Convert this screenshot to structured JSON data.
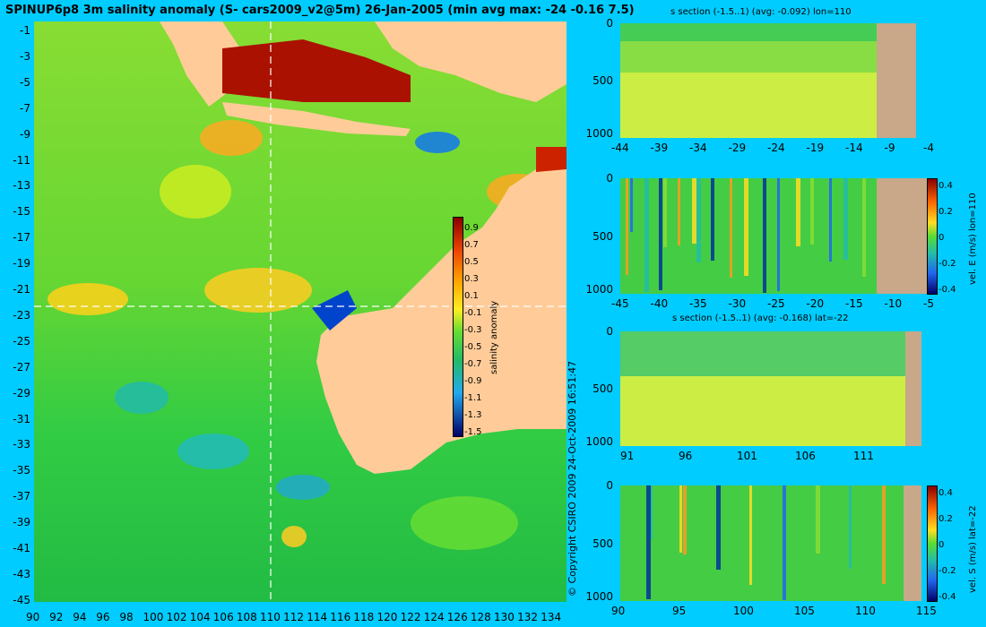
{
  "map": {
    "title": "SPINUP6p8 3m salinity anomaly (S- cars2009_v2@5m) 26-Jan-2005 (min avg max: -24 -0.16 7.5)",
    "x_ticks": [
      "90",
      "92",
      "94",
      "96",
      "98",
      "100",
      "102",
      "104",
      "106",
      "108",
      "110",
      "112",
      "114",
      "116",
      "118",
      "120",
      "122",
      "124",
      "126",
      "128",
      "130",
      "132",
      "134"
    ],
    "y_ticks": [
      "-1",
      "-3",
      "-5",
      "-7",
      "-9",
      "-11",
      "-13",
      "-15",
      "-17",
      "-19",
      "-21",
      "-23",
      "-25",
      "-27",
      "-29",
      "-31",
      "-33",
      "-35",
      "-37",
      "-39",
      "-41",
      "-43",
      "-45"
    ],
    "colorbar": {
      "label": "salinity anomaly",
      "ticks": [
        "0.9",
        "0.7",
        "0.5",
        "0.3",
        "0.1",
        "-0.1",
        "-0.3",
        "-0.5",
        "-0.7",
        "-0.9",
        "-1.1",
        "-1.3",
        "-1.5"
      ]
    },
    "copyright": "© Copyright CSIRO 2009   24-Oct-2009 16:51:47",
    "section_lon": "110",
    "section_lat": "-22"
  },
  "panels": {
    "p1": {
      "title": "s section (-1.5..1) (avg: -0.092) lon=110",
      "y_ticks": [
        "0",
        "500",
        "1000"
      ],
      "x_ticks": [
        "-44",
        "-39",
        "-34",
        "-29",
        "-24",
        "-19",
        "-14",
        "-9",
        "-4"
      ]
    },
    "p2": {
      "y_ticks": [
        "0",
        "500",
        "1000"
      ],
      "x_ticks": [
        "-45",
        "-40",
        "-35",
        "-30",
        "-25",
        "-20",
        "-15",
        "-10",
        "-5"
      ],
      "colorbar_ticks": [
        "0.4",
        "0.2",
        "0",
        "-0.2",
        "-0.4"
      ],
      "colorbar_label": "vel. E (m/s) lon=110"
    },
    "p3": {
      "title": "s section (-1.5..1) (avg: -0.168) lat=-22",
      "y_ticks": [
        "0",
        "500",
        "1000"
      ],
      "x_ticks": [
        "91",
        "96",
        "101",
        "106",
        "111"
      ]
    },
    "p4": {
      "y_ticks": [
        "0",
        "500",
        "1000"
      ],
      "x_ticks": [
        "90",
        "95",
        "100",
        "105",
        "110",
        "115"
      ],
      "colorbar_ticks": [
        "0.4",
        "0.2",
        "0",
        "-0.2",
        "-0.4"
      ],
      "colorbar_label": "vel. S (m/s) lat=-22"
    }
  },
  "colors": {
    "background": "#00ccff",
    "land": "#ffcc99",
    "section_land": "#c8a888",
    "ocean_green": "#33cc33",
    "high_anomaly": "#aa1100",
    "low_anomaly": "#0033cc"
  }
}
